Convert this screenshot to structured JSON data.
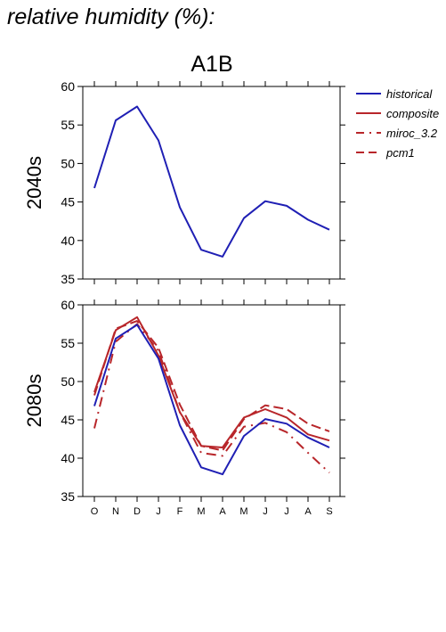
{
  "page_title": "relative humidity (%):",
  "chart_data": {
    "type": "line",
    "title": "A1B",
    "categories": [
      "O",
      "N",
      "D",
      "J",
      "F",
      "M",
      "A",
      "M",
      "J",
      "J",
      "A",
      "S"
    ],
    "ylim": [
      35,
      60
    ],
    "yticks": [
      35,
      40,
      45,
      50,
      55,
      60
    ],
    "legend": {
      "placement": "top-right",
      "entries": [
        {
          "name": "historical",
          "color": "#1f1fb4",
          "dash": "solid"
        },
        {
          "name": "composite",
          "color": "#b8262a",
          "dash": "solid"
        },
        {
          "name": "miroc_3.2",
          "color": "#b8262a",
          "dash": "dashdot"
        },
        {
          "name": "pcm1",
          "color": "#b8262a",
          "dash": "dashed"
        }
      ]
    },
    "panels": [
      {
        "label": "2040s",
        "series": [
          {
            "name": "historical",
            "values": [
              46.8,
              55.6,
              57.4,
              53.0,
              44.3,
              38.8,
              37.9,
              42.9,
              45.1,
              44.5,
              42.7,
              41.4
            ]
          }
        ]
      },
      {
        "label": "2080s",
        "series": [
          {
            "name": "historical",
            "values": [
              46.8,
              55.6,
              57.4,
              53.0,
              44.3,
              38.8,
              37.9,
              42.9,
              45.1,
              44.5,
              42.7,
              41.4
            ]
          },
          {
            "name": "composite",
            "values": [
              48.6,
              56.7,
              58.4,
              53.4,
              46.0,
              41.6,
              41.4,
              45.3,
              46.4,
              45.3,
              43.1,
              42.3
            ]
          },
          {
            "name": "miroc_3.2",
            "values": [
              43.9,
              55.2,
              57.5,
              54.0,
              46.0,
              40.7,
              40.3,
              44.1,
              44.6,
              43.4,
              40.7,
              38.1
            ]
          },
          {
            "name": "pcm1",
            "values": [
              48.2,
              56.9,
              57.9,
              54.4,
              47.0,
              41.6,
              41.0,
              45.1,
              46.9,
              46.4,
              44.5,
              43.5
            ]
          }
        ]
      }
    ]
  }
}
